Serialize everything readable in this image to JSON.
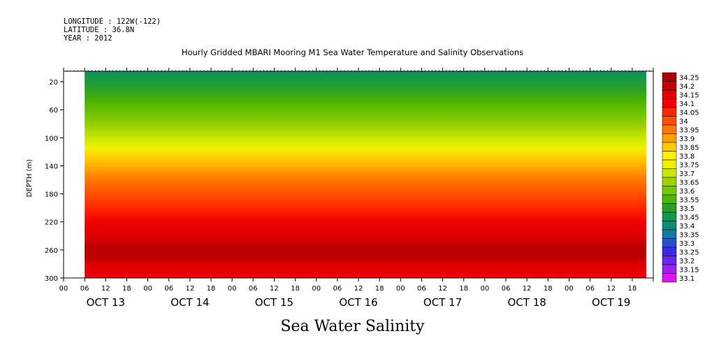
{
  "meta": {
    "longitude": "LONGITUDE : 122W(-122)",
    "latitude": "LATITUDE : 36.8N",
    "year": "YEAR : 2012"
  },
  "chart_data": {
    "type": "heatmap",
    "title": "Hourly Gridded MBARI Mooring M1 Sea Water Temperature and Salinity Observations",
    "subtitle": "Sea Water Salinity",
    "ylabel": "DEPTH (m)",
    "xlabel": "",
    "y_ticks": [
      20,
      60,
      100,
      140,
      180,
      220,
      260,
      300
    ],
    "ylim": [
      300,
      5
    ],
    "x_hour_ticks": [
      "00",
      "06",
      "12",
      "18",
      "00",
      "06",
      "12",
      "18",
      "00",
      "06",
      "12",
      "18",
      "00",
      "06",
      "12",
      "18",
      "00",
      "06",
      "12",
      "18",
      "00",
      "06",
      "12",
      "18",
      "00",
      "06",
      "12",
      "18"
    ],
    "x_day_labels": [
      "OCT 13",
      "OCT 14",
      "OCT 15",
      "OCT 16",
      "OCT 17",
      "OCT 18",
      "OCT 19"
    ],
    "data_start_hour": 6,
    "data_end_hour": 166,
    "colorbar_levels": [
      "34.25",
      "34.2",
      "34.15",
      "34.1",
      "34.05",
      "34",
      "33.95",
      "33.9",
      "33.85",
      "33.8",
      "33.75",
      "33.7",
      "33.65",
      "33.6",
      "33.55",
      "33.5",
      "33.45",
      "33.4",
      "33.35",
      "33.3",
      "33.25",
      "33.2",
      "33.15",
      "33.1"
    ],
    "colorbar_colors": [
      "#a80000",
      "#c20000",
      "#dc0000",
      "#f00000",
      "#ff2800",
      "#ff5000",
      "#ff7800",
      "#ffa000",
      "#ffc800",
      "#fff000",
      "#f0f000",
      "#c8e600",
      "#a0d200",
      "#78c800",
      "#50b400",
      "#28a028",
      "#129650",
      "#0a8c78",
      "#1478a0",
      "#2850c8",
      "#3c28e6",
      "#6428f0",
      "#a020f0",
      "#dc14f0"
    ],
    "profile": [
      {
        "depth": 5,
        "value": 33.4
      },
      {
        "depth": 10,
        "value": 33.45
      },
      {
        "depth": 30,
        "value": 33.5
      },
      {
        "depth": 50,
        "value": 33.55
      },
      {
        "depth": 70,
        "value": 33.6
      },
      {
        "depth": 85,
        "value": 33.65
      },
      {
        "depth": 100,
        "value": 33.72
      },
      {
        "depth": 115,
        "value": 33.78
      },
      {
        "depth": 130,
        "value": 33.85
      },
      {
        "depth": 145,
        "value": 33.9
      },
      {
        "depth": 160,
        "value": 33.97
      },
      {
        "depth": 180,
        "value": 34.03
      },
      {
        "depth": 200,
        "value": 34.08
      },
      {
        "depth": 220,
        "value": 34.12
      },
      {
        "depth": 240,
        "value": 34.17
      },
      {
        "depth": 255,
        "value": 34.2
      },
      {
        "depth": 265,
        "value": 34.2
      },
      {
        "depth": 280,
        "value": 34.16
      },
      {
        "depth": 300,
        "value": 34.12
      }
    ],
    "grid": false
  }
}
